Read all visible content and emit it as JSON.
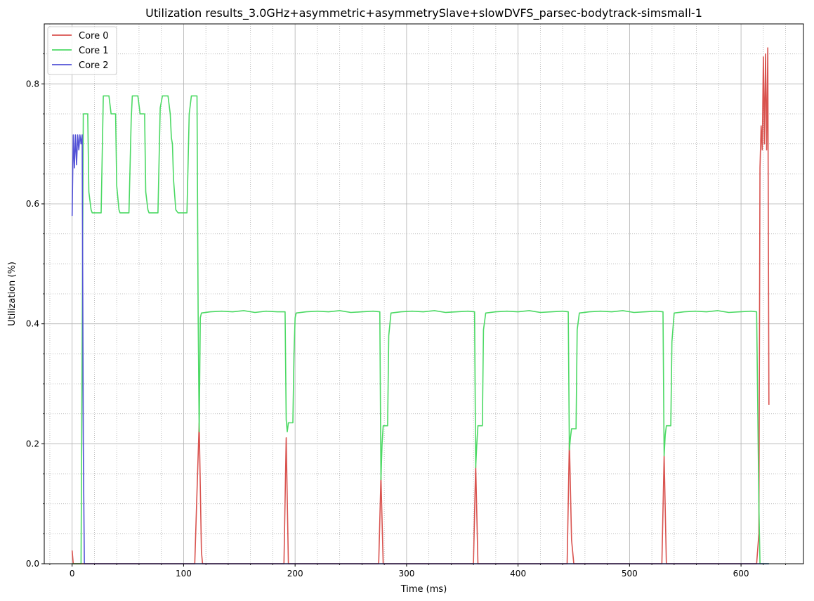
{
  "chart_data": {
    "type": "line",
    "title": "Utilization results_3.0GHz+asymmetric+asymmetrySlave+slowDVFS_parsec-bodytrack-simsmall-1",
    "xlabel": "Time (ms)",
    "ylabel": "Utilization (%)",
    "xlim": [
      -25,
      656
    ],
    "ylim": [
      0,
      0.9
    ],
    "xticks": [
      0,
      100,
      200,
      300,
      400,
      500,
      600
    ],
    "yticks": [
      0.0,
      0.2,
      0.4,
      0.6,
      0.8
    ],
    "xtick_labels": [
      "0",
      "100",
      "200",
      "300",
      "400",
      "500",
      "600"
    ],
    "ytick_labels": [
      "0.0",
      "0.2",
      "0.4",
      "0.6",
      "0.8"
    ],
    "grid": "major solid + minor dotted",
    "legend_position": "top-left",
    "series": [
      {
        "name": "Core 0",
        "color": "#d9534f",
        "points": [
          [
            0,
            0.022
          ],
          [
            1,
            0
          ],
          [
            110,
            0
          ],
          [
            112,
            0.12
          ],
          [
            114,
            0.235
          ],
          [
            116,
            0.02
          ],
          [
            117,
            0
          ],
          [
            190,
            0
          ],
          [
            192,
            0.21
          ],
          [
            194,
            0
          ],
          [
            275,
            0
          ],
          [
            277,
            0.145
          ],
          [
            279,
            0
          ],
          [
            360,
            0
          ],
          [
            362,
            0.165
          ],
          [
            364,
            0
          ],
          [
            444,
            0
          ],
          [
            446,
            0.205
          ],
          [
            448,
            0.04
          ],
          [
            450,
            0
          ],
          [
            529,
            0
          ],
          [
            531,
            0.18
          ],
          [
            533,
            0
          ],
          [
            614,
            0
          ],
          [
            616,
            0.05
          ],
          [
            617,
            0.66
          ],
          [
            618,
            0.73
          ],
          [
            619,
            0.69
          ],
          [
            620,
            0.845
          ],
          [
            621,
            0.7
          ],
          [
            622,
            0.85
          ],
          [
            623,
            0.69
          ],
          [
            624,
            0.86
          ],
          [
            625,
            0.265
          ]
        ]
      },
      {
        "name": "Core 1",
        "color": "#4cd964",
        "points": [
          [
            0,
            0
          ],
          [
            8,
            0
          ],
          [
            10,
            0.75
          ],
          [
            14,
            0.75
          ],
          [
            15,
            0.62
          ],
          [
            17,
            0.59
          ],
          [
            18,
            0.585
          ],
          [
            26,
            0.585
          ],
          [
            28,
            0.78
          ],
          [
            33,
            0.78
          ],
          [
            35,
            0.75
          ],
          [
            39,
            0.75
          ],
          [
            40,
            0.63
          ],
          [
            42,
            0.59
          ],
          [
            43,
            0.585
          ],
          [
            51,
            0.585
          ],
          [
            53,
            0.74
          ],
          [
            54,
            0.78
          ],
          [
            59,
            0.78
          ],
          [
            61,
            0.75
          ],
          [
            65,
            0.75
          ],
          [
            66,
            0.62
          ],
          [
            68,
            0.59
          ],
          [
            69,
            0.585
          ],
          [
            77,
            0.585
          ],
          [
            79,
            0.76
          ],
          [
            81,
            0.78
          ],
          [
            86,
            0.78
          ],
          [
            88,
            0.75
          ],
          [
            89,
            0.71
          ],
          [
            90,
            0.7
          ],
          [
            91,
            0.64
          ],
          [
            93,
            0.59
          ],
          [
            95,
            0.585
          ],
          [
            103,
            0.585
          ],
          [
            105,
            0.75
          ],
          [
            107,
            0.78
          ],
          [
            112,
            0.78
          ],
          [
            113,
            0.42
          ],
          [
            114,
            0.22
          ],
          [
            115,
            0.41
          ],
          [
            116,
            0.418
          ],
          [
            124,
            0.42
          ],
          [
            134,
            0.421
          ],
          [
            144,
            0.42
          ],
          [
            154,
            0.422
          ],
          [
            164,
            0.419
          ],
          [
            174,
            0.421
          ],
          [
            184,
            0.42
          ],
          [
            191,
            0.42
          ],
          [
            192,
            0.24
          ],
          [
            193,
            0.22
          ],
          [
            194,
            0.235
          ],
          [
            198,
            0.235
          ],
          [
            199,
            0.35
          ],
          [
            200,
            0.41
          ],
          [
            201,
            0.418
          ],
          [
            210,
            0.42
          ],
          [
            220,
            0.421
          ],
          [
            230,
            0.42
          ],
          [
            240,
            0.422
          ],
          [
            250,
            0.419
          ],
          [
            260,
            0.42
          ],
          [
            270,
            0.421
          ],
          [
            276,
            0.42
          ],
          [
            277,
            0.14
          ],
          [
            278,
            0.2
          ],
          [
            279,
            0.23
          ],
          [
            283,
            0.23
          ],
          [
            284,
            0.38
          ],
          [
            286,
            0.418
          ],
          [
            295,
            0.42
          ],
          [
            305,
            0.421
          ],
          [
            315,
            0.42
          ],
          [
            325,
            0.422
          ],
          [
            335,
            0.419
          ],
          [
            345,
            0.42
          ],
          [
            355,
            0.421
          ],
          [
            361,
            0.42
          ],
          [
            362,
            0.16
          ],
          [
            363,
            0.2
          ],
          [
            364,
            0.23
          ],
          [
            368,
            0.23
          ],
          [
            369,
            0.39
          ],
          [
            371,
            0.418
          ],
          [
            380,
            0.42
          ],
          [
            390,
            0.421
          ],
          [
            400,
            0.42
          ],
          [
            410,
            0.422
          ],
          [
            420,
            0.419
          ],
          [
            430,
            0.42
          ],
          [
            440,
            0.421
          ],
          [
            445,
            0.42
          ],
          [
            446,
            0.19
          ],
          [
            447,
            0.21
          ],
          [
            448,
            0.225
          ],
          [
            452,
            0.225
          ],
          [
            453,
            0.39
          ],
          [
            455,
            0.418
          ],
          [
            464,
            0.42
          ],
          [
            474,
            0.421
          ],
          [
            484,
            0.42
          ],
          [
            494,
            0.422
          ],
          [
            504,
            0.419
          ],
          [
            514,
            0.42
          ],
          [
            524,
            0.421
          ],
          [
            530,
            0.42
          ],
          [
            531,
            0.18
          ],
          [
            532,
            0.215
          ],
          [
            533,
            0.23
          ],
          [
            537,
            0.23
          ],
          [
            538,
            0.37
          ],
          [
            540,
            0.418
          ],
          [
            549,
            0.42
          ],
          [
            559,
            0.421
          ],
          [
            569,
            0.42
          ],
          [
            579,
            0.422
          ],
          [
            589,
            0.419
          ],
          [
            599,
            0.42
          ],
          [
            609,
            0.421
          ],
          [
            614,
            0.42
          ],
          [
            616,
            0.1
          ],
          [
            617,
            0
          ],
          [
            625,
            0
          ]
        ]
      },
      {
        "name": "Core 2",
        "color": "#5352d6",
        "points": [
          [
            0,
            0.58
          ],
          [
            1,
            0.715
          ],
          [
            2,
            0.66
          ],
          [
            3,
            0.715
          ],
          [
            4,
            0.665
          ],
          [
            5,
            0.715
          ],
          [
            6,
            0.69
          ],
          [
            7,
            0.715
          ],
          [
            8,
            0.7
          ],
          [
            9,
            0.715
          ],
          [
            10,
            0.2
          ],
          [
            11,
            0
          ],
          [
            625,
            0
          ]
        ]
      }
    ]
  }
}
